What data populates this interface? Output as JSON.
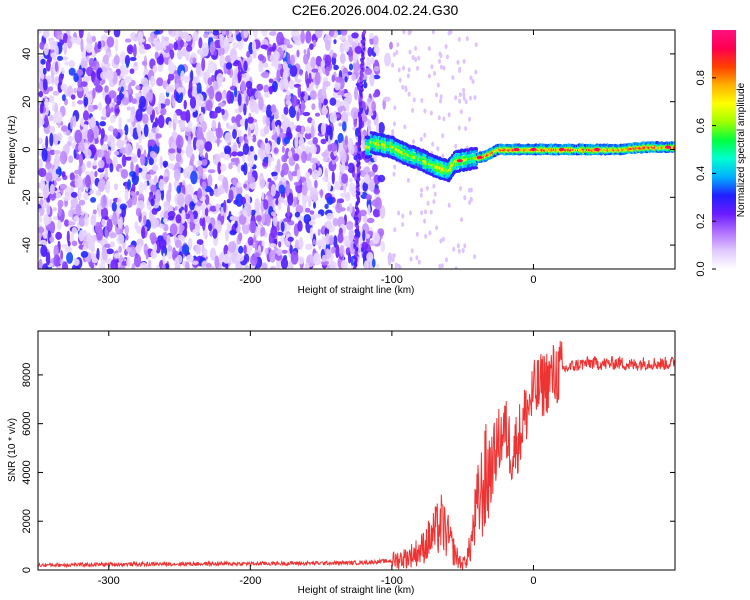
{
  "title": "C2E6.2026.004.02.24.G30",
  "chart_data": [
    {
      "type": "heatmap",
      "xlabel": "Height of straight line (km)",
      "ylabel": "Frequency (Hz)",
      "xlim": [
        -350,
        100
      ],
      "ylim": [
        -50,
        50
      ],
      "xticks": [
        "-300",
        "-200",
        "-100",
        "0"
      ],
      "yticks": [
        "-40",
        "-20",
        "0",
        "20",
        "40"
      ],
      "colorbar": {
        "label": "Normalized spectral amplitude",
        "range": [
          0,
          1
        ],
        "ticks": [
          "0.0",
          "0.2",
          "0.4",
          "0.6",
          "0.8"
        ],
        "colors": [
          "#ffffff",
          "#e0c8ff",
          "#b070ff",
          "#6a1bff",
          "#2020ff",
          "#00b0ff",
          "#00ffd0",
          "#00ff40",
          "#a0ff00",
          "#ffff00",
          "#ffb000",
          "#ff4000",
          "#ff0050",
          "#ff1080"
        ]
      },
      "ridge": [
        {
          "x": -115,
          "y": 3
        },
        {
          "x": -100,
          "y": 1
        },
        {
          "x": -90,
          "y": -2
        },
        {
          "x": -80,
          "y": -4
        },
        {
          "x": -70,
          "y": -7
        },
        {
          "x": -60,
          "y": -9
        },
        {
          "x": -55,
          "y": -5
        },
        {
          "x": -45,
          "y": -4
        },
        {
          "x": -35,
          "y": -3
        },
        {
          "x": -25,
          "y": 0
        },
        {
          "x": -10,
          "y": 0
        },
        {
          "x": 0,
          "y": 0
        },
        {
          "x": 30,
          "y": 0
        },
        {
          "x": 60,
          "y": 0
        },
        {
          "x": 80,
          "y": 1
        },
        {
          "x": 100,
          "y": 1
        }
      ],
      "grid": false
    },
    {
      "type": "line",
      "xlabel": "Height of straight line (km)",
      "ylabel": "SNR (10 * v/v)",
      "xlim": [
        -350,
        100
      ],
      "ylim": [
        0,
        9800
      ],
      "xticks": [
        "-300",
        "-200",
        "-100",
        "0"
      ],
      "yticks": [
        "0",
        "2000",
        "4000",
        "6000",
        "8000"
      ],
      "series": [
        {
          "color": "#ee3333",
          "x": [
            -350,
            -300,
            -250,
            -200,
            -150,
            -120,
            -100,
            -90,
            -80,
            -70,
            -65,
            -60,
            -55,
            -50,
            -45,
            -40,
            -35,
            -30,
            -25,
            -20,
            -15,
            -10,
            -5,
            0,
            10,
            20,
            30,
            40,
            50,
            60,
            70,
            80,
            90,
            100
          ],
          "y": [
            200,
            230,
            250,
            260,
            280,
            300,
            380,
            500,
            800,
            1500,
            1900,
            1300,
            600,
            200,
            800,
            2500,
            3500,
            4200,
            5200,
            5800,
            4800,
            5500,
            6500,
            7200,
            7800,
            8200,
            8400,
            8500,
            8450,
            8500,
            8400,
            8500,
            8450,
            8500
          ]
        }
      ],
      "grid": false
    }
  ]
}
